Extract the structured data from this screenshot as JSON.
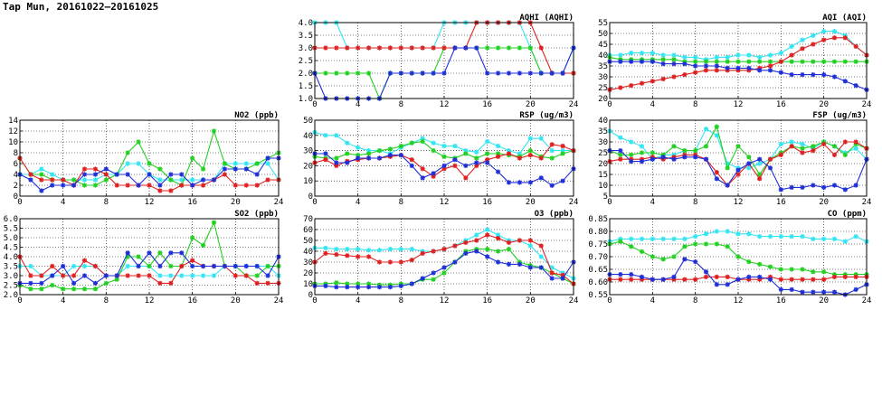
{
  "title": "Tap Mun, 20161022—20161025",
  "colors": {
    "cyan": "#33e5f2",
    "green": "#22d022",
    "red": "#e02020",
    "blue": "#1f2fd8"
  },
  "chart_data": [
    {
      "id": "aqhi",
      "type": "line",
      "title": "AQHI (AQHI)",
      "xlim": [
        0,
        24
      ],
      "xticks": [
        0,
        4,
        8,
        12,
        16,
        20,
        24
      ],
      "ylim": [
        1.0,
        4.0
      ],
      "yticks": [
        "1.0",
        "1.5",
        "2.0",
        "2.5",
        "3.0",
        "3.5",
        "4.0"
      ],
      "series": [
        {
          "color": "cyan",
          "values": [
            4,
            4,
            4,
            3,
            3,
            3,
            3,
            3,
            3,
            3,
            3,
            3,
            4,
            4,
            4,
            4,
            4,
            4,
            4,
            4,
            3,
            2,
            2,
            2,
            3
          ]
        },
        {
          "color": "green",
          "values": [
            2,
            2,
            2,
            2,
            2,
            2,
            1,
            2,
            2,
            2,
            2,
            2,
            3,
            3,
            3,
            3,
            3,
            3,
            3,
            3,
            3,
            2,
            2,
            2,
            2
          ]
        },
        {
          "color": "red",
          "values": [
            3,
            3,
            3,
            3,
            3,
            3,
            3,
            3,
            3,
            3,
            3,
            3,
            3,
            3,
            3,
            4,
            4,
            4,
            4,
            4,
            4,
            3,
            2,
            2,
            2
          ]
        },
        {
          "color": "blue",
          "values": [
            2,
            1,
            1,
            1,
            1,
            1,
            1,
            2,
            2,
            2,
            2,
            2,
            2,
            3,
            3,
            3,
            2,
            2,
            2,
            2,
            2,
            2,
            2,
            2,
            3
          ]
        }
      ]
    },
    {
      "id": "aqi",
      "type": "line",
      "title": "AQI (AQI)",
      "xlim": [
        0,
        24
      ],
      "xticks": [
        0,
        4,
        8,
        12,
        16,
        20,
        24
      ],
      "ylim": [
        20,
        55
      ],
      "yticks": [
        "20",
        "25",
        "30",
        "35",
        "40",
        "45",
        "50",
        "55"
      ],
      "series": [
        {
          "color": "cyan",
          "values": [
            40,
            40,
            41,
            41,
            41,
            40,
            40,
            39,
            39,
            38,
            39,
            39,
            40,
            40,
            39,
            40,
            41,
            44,
            47,
            49,
            51,
            51,
            49,
            44,
            40
          ]
        },
        {
          "color": "green",
          "values": [
            39,
            38,
            38,
            38,
            38,
            38,
            38,
            37,
            37,
            37,
            37,
            37,
            37,
            37,
            37,
            37,
            37,
            37,
            37,
            37,
            37,
            37,
            37,
            37,
            37
          ]
        },
        {
          "color": "red",
          "values": [
            24,
            25,
            26,
            27,
            28,
            29,
            30,
            31,
            32,
            33,
            33,
            33,
            33,
            33,
            34,
            35,
            37,
            40,
            43,
            45,
            47,
            48,
            48,
            44,
            40
          ]
        },
        {
          "color": "blue",
          "values": [
            37,
            37,
            37,
            37,
            37,
            36,
            36,
            36,
            35,
            35,
            35,
            34,
            34,
            34,
            33,
            33,
            32,
            31,
            31,
            31,
            31,
            30,
            28,
            26,
            24
          ]
        }
      ]
    },
    {
      "id": "no2",
      "type": "line",
      "title": "NO2 (ppb)",
      "xlim": [
        0,
        24
      ],
      "xticks": [
        0,
        4,
        8,
        12,
        16,
        20,
        24
      ],
      "ylim": [
        0,
        14
      ],
      "yticks": [
        "0",
        "2",
        "4",
        "6",
        "8",
        "10",
        "12",
        "14"
      ],
      "series": [
        {
          "color": "cyan",
          "values": [
            4,
            4,
            5,
            4,
            3,
            3,
            3,
            3,
            4,
            4,
            6,
            6,
            4,
            3,
            3,
            3,
            3,
            3,
            3,
            6,
            6,
            6,
            6,
            6,
            3
          ]
        },
        {
          "color": "green",
          "values": [
            7,
            4,
            4,
            3,
            3,
            3,
            2,
            2,
            3,
            4,
            8,
            10,
            6,
            5,
            3,
            2,
            7,
            5,
            12,
            6,
            5,
            5,
            6,
            7,
            8
          ]
        },
        {
          "color": "red",
          "values": [
            7,
            4,
            3,
            3,
            3,
            2,
            5,
            5,
            4,
            2,
            2,
            2,
            2,
            1,
            1,
            2,
            2,
            2,
            3,
            4,
            2,
            2,
            2,
            3,
            3
          ]
        },
        {
          "color": "blue",
          "values": [
            4,
            3,
            1,
            2,
            2,
            2,
            4,
            4,
            5,
            4,
            4,
            2,
            4,
            2,
            4,
            4,
            2,
            3,
            3,
            5,
            5,
            5,
            4,
            7,
            7
          ]
        }
      ]
    },
    {
      "id": "rsp",
      "type": "line",
      "title": "RSP (ug/m3)",
      "xlim": [
        0,
        24
      ],
      "xticks": [
        0,
        4,
        8,
        12,
        16,
        20,
        24
      ],
      "ylim": [
        0,
        50
      ],
      "yticks": [
        "0",
        "10",
        "20",
        "30",
        "40",
        "50"
      ],
      "series": [
        {
          "color": "cyan",
          "values": [
            42,
            40,
            40,
            35,
            32,
            30,
            30,
            28,
            32,
            35,
            38,
            35,
            33,
            33,
            30,
            29,
            36,
            33,
            30,
            28,
            38,
            38,
            30,
            30,
            30
          ]
        },
        {
          "color": "green",
          "values": [
            26,
            25,
            25,
            28,
            27,
            28,
            30,
            31,
            33,
            35,
            36,
            30,
            26,
            25,
            28,
            25,
            28,
            28,
            27,
            26,
            30,
            26,
            25,
            28,
            30
          ]
        },
        {
          "color": "red",
          "values": [
            22,
            24,
            20,
            23,
            24,
            25,
            25,
            26,
            27,
            24,
            18,
            13,
            18,
            20,
            12,
            20,
            24,
            26,
            28,
            25,
            27,
            25,
            34,
            33,
            30
          ]
        },
        {
          "color": "blue",
          "values": [
            28,
            28,
            22,
            22,
            25,
            25,
            25,
            27,
            27,
            20,
            12,
            15,
            20,
            24,
            20,
            22,
            22,
            16,
            9,
            9,
            9,
            12,
            7,
            10,
            18
          ]
        }
      ]
    },
    {
      "id": "fsp",
      "type": "line",
      "title": "FSP (ug/m3)",
      "xlim": [
        0,
        24
      ],
      "xticks": [
        0,
        4,
        8,
        12,
        16,
        20,
        24
      ],
      "ylim": [
        5,
        40
      ],
      "yticks": [
        "5",
        "10",
        "15",
        "20",
        "25",
        "30",
        "35",
        "40"
      ],
      "series": [
        {
          "color": "cyan",
          "values": [
            35,
            32,
            30,
            28,
            22,
            24,
            24,
            26,
            26,
            36,
            33,
            20,
            18,
            18,
            20,
            22,
            29,
            30,
            29,
            27,
            30,
            28,
            25,
            27,
            22
          ]
        },
        {
          "color": "green",
          "values": [
            26,
            24,
            24,
            25,
            25,
            24,
            28,
            26,
            26,
            28,
            37,
            18,
            28,
            23,
            15,
            22,
            25,
            28,
            27,
            28,
            30,
            28,
            24,
            29,
            27
          ]
        },
        {
          "color": "red",
          "values": [
            21,
            22,
            22,
            22,
            23,
            22,
            23,
            24,
            24,
            22,
            16,
            10,
            15,
            20,
            13,
            22,
            24,
            28,
            25,
            26,
            29,
            24,
            30,
            30,
            27
          ]
        },
        {
          "color": "blue",
          "values": [
            26,
            26,
            21,
            21,
            22,
            23,
            22,
            23,
            23,
            22,
            13,
            10,
            17,
            20,
            22,
            18,
            8,
            9,
            9,
            10,
            9,
            10,
            8,
            10,
            22
          ]
        }
      ]
    },
    {
      "id": "so2",
      "type": "line",
      "title": "SO2 (ppb)",
      "xlim": [
        0,
        24
      ],
      "xticks": [
        0,
        4,
        8,
        12,
        16,
        20,
        24
      ],
      "ylim": [
        2.0,
        6.0
      ],
      "yticks": [
        "2.0",
        "2.5",
        "3.0",
        "3.5",
        "4.0",
        "4.5",
        "5.0",
        "5.5",
        "6.0"
      ],
      "series": [
        {
          "color": "cyan",
          "values": [
            3.5,
            3.5,
            3.0,
            3.0,
            3.0,
            3.5,
            3.5,
            3.5,
            3.0,
            3.0,
            3.5,
            3.5,
            3.5,
            3.0,
            3.0,
            3.0,
            3.0,
            3.0,
            3.0,
            3.5,
            3.5,
            3.5,
            3.5,
            3.5,
            3.0
          ]
        },
        {
          "color": "green",
          "values": [
            2.5,
            2.3,
            2.3,
            2.5,
            2.3,
            2.3,
            2.3,
            2.3,
            2.6,
            2.8,
            4.0,
            4.0,
            3.5,
            4.2,
            3.5,
            3.5,
            5.0,
            4.6,
            5.8,
            3.5,
            3.5,
            3.0,
            3.0,
            3.5,
            3.5
          ]
        },
        {
          "color": "red",
          "values": [
            4.0,
            3.0,
            3.0,
            3.5,
            3.0,
            3.0,
            3.8,
            3.5,
            3.0,
            3.0,
            3.0,
            3.0,
            3.0,
            2.6,
            2.6,
            3.5,
            3.8,
            3.5,
            3.5,
            3.5,
            3.0,
            3.0,
            2.6,
            2.6,
            2.6
          ]
        },
        {
          "color": "blue",
          "values": [
            2.6,
            2.6,
            2.6,
            3.0,
            3.5,
            2.6,
            3.0,
            2.6,
            3.0,
            3.0,
            4.2,
            3.5,
            4.2,
            3.5,
            4.2,
            4.2,
            3.5,
            3.5,
            3.5,
            3.5,
            3.5,
            3.5,
            3.5,
            3.0,
            4.0
          ]
        }
      ]
    },
    {
      "id": "o3",
      "type": "line",
      "title": "O3 (ppb)",
      "xlim": [
        0,
        24
      ],
      "xticks": [
        0,
        4,
        8,
        12,
        16,
        20,
        24
      ],
      "ylim": [
        0,
        70
      ],
      "yticks": [
        "0",
        "10",
        "20",
        "30",
        "40",
        "50",
        "60",
        "70"
      ],
      "series": [
        {
          "color": "cyan",
          "values": [
            43,
            43,
            42,
            42,
            42,
            41,
            41,
            42,
            42,
            42,
            40,
            40,
            42,
            45,
            50,
            55,
            60,
            55,
            50,
            50,
            45,
            35,
            25,
            20,
            15
          ]
        },
        {
          "color": "green",
          "values": [
            10,
            10,
            11,
            10,
            10,
            10,
            9,
            9,
            10,
            10,
            14,
            14,
            20,
            30,
            40,
            42,
            42,
            40,
            42,
            30,
            27,
            25,
            20,
            15,
            10
          ]
        },
        {
          "color": "red",
          "values": [
            30,
            38,
            37,
            36,
            35,
            35,
            30,
            30,
            30,
            32,
            38,
            40,
            42,
            45,
            48,
            50,
            55,
            52,
            48,
            50,
            50,
            45,
            20,
            18,
            10
          ]
        },
        {
          "color": "blue",
          "values": [
            8,
            8,
            7,
            7,
            7,
            7,
            7,
            7,
            8,
            10,
            15,
            20,
            25,
            30,
            38,
            40,
            35,
            30,
            28,
            28,
            25,
            25,
            15,
            15,
            30
          ]
        }
      ]
    },
    {
      "id": "co",
      "type": "line",
      "title": "CO (ppm)",
      "xlim": [
        0,
        24
      ],
      "xticks": [
        0,
        4,
        8,
        12,
        16,
        20,
        24
      ],
      "ylim": [
        0.55,
        0.85
      ],
      "yticks": [
        "0.55",
        "0.60",
        "0.65",
        "0.70",
        "0.75",
        "0.80",
        "0.85"
      ],
      "series": [
        {
          "color": "cyan",
          "values": [
            0.76,
            0.77,
            0.77,
            0.77,
            0.77,
            0.77,
            0.77,
            0.77,
            0.78,
            0.79,
            0.8,
            0.8,
            0.79,
            0.79,
            0.78,
            0.78,
            0.78,
            0.78,
            0.78,
            0.77,
            0.77,
            0.77,
            0.76,
            0.78,
            0.76
          ]
        },
        {
          "color": "green",
          "values": [
            0.75,
            0.76,
            0.74,
            0.72,
            0.7,
            0.69,
            0.7,
            0.74,
            0.75,
            0.75,
            0.75,
            0.74,
            0.7,
            0.68,
            0.67,
            0.66,
            0.65,
            0.65,
            0.65,
            0.64,
            0.64,
            0.63,
            0.63,
            0.63,
            0.63
          ]
        },
        {
          "color": "red",
          "values": [
            0.61,
            0.61,
            0.61,
            0.61,
            0.61,
            0.61,
            0.61,
            0.61,
            0.61,
            0.62,
            0.62,
            0.62,
            0.61,
            0.61,
            0.61,
            0.62,
            0.61,
            0.61,
            0.61,
            0.61,
            0.61,
            0.62,
            0.62,
            0.62,
            0.62
          ]
        },
        {
          "color": "blue",
          "values": [
            0.63,
            0.63,
            0.63,
            0.62,
            0.61,
            0.61,
            0.62,
            0.69,
            0.68,
            0.64,
            0.59,
            0.59,
            0.61,
            0.62,
            0.62,
            0.61,
            0.57,
            0.57,
            0.56,
            0.56,
            0.56,
            0.56,
            0.55,
            0.57,
            0.59
          ]
        }
      ]
    }
  ]
}
